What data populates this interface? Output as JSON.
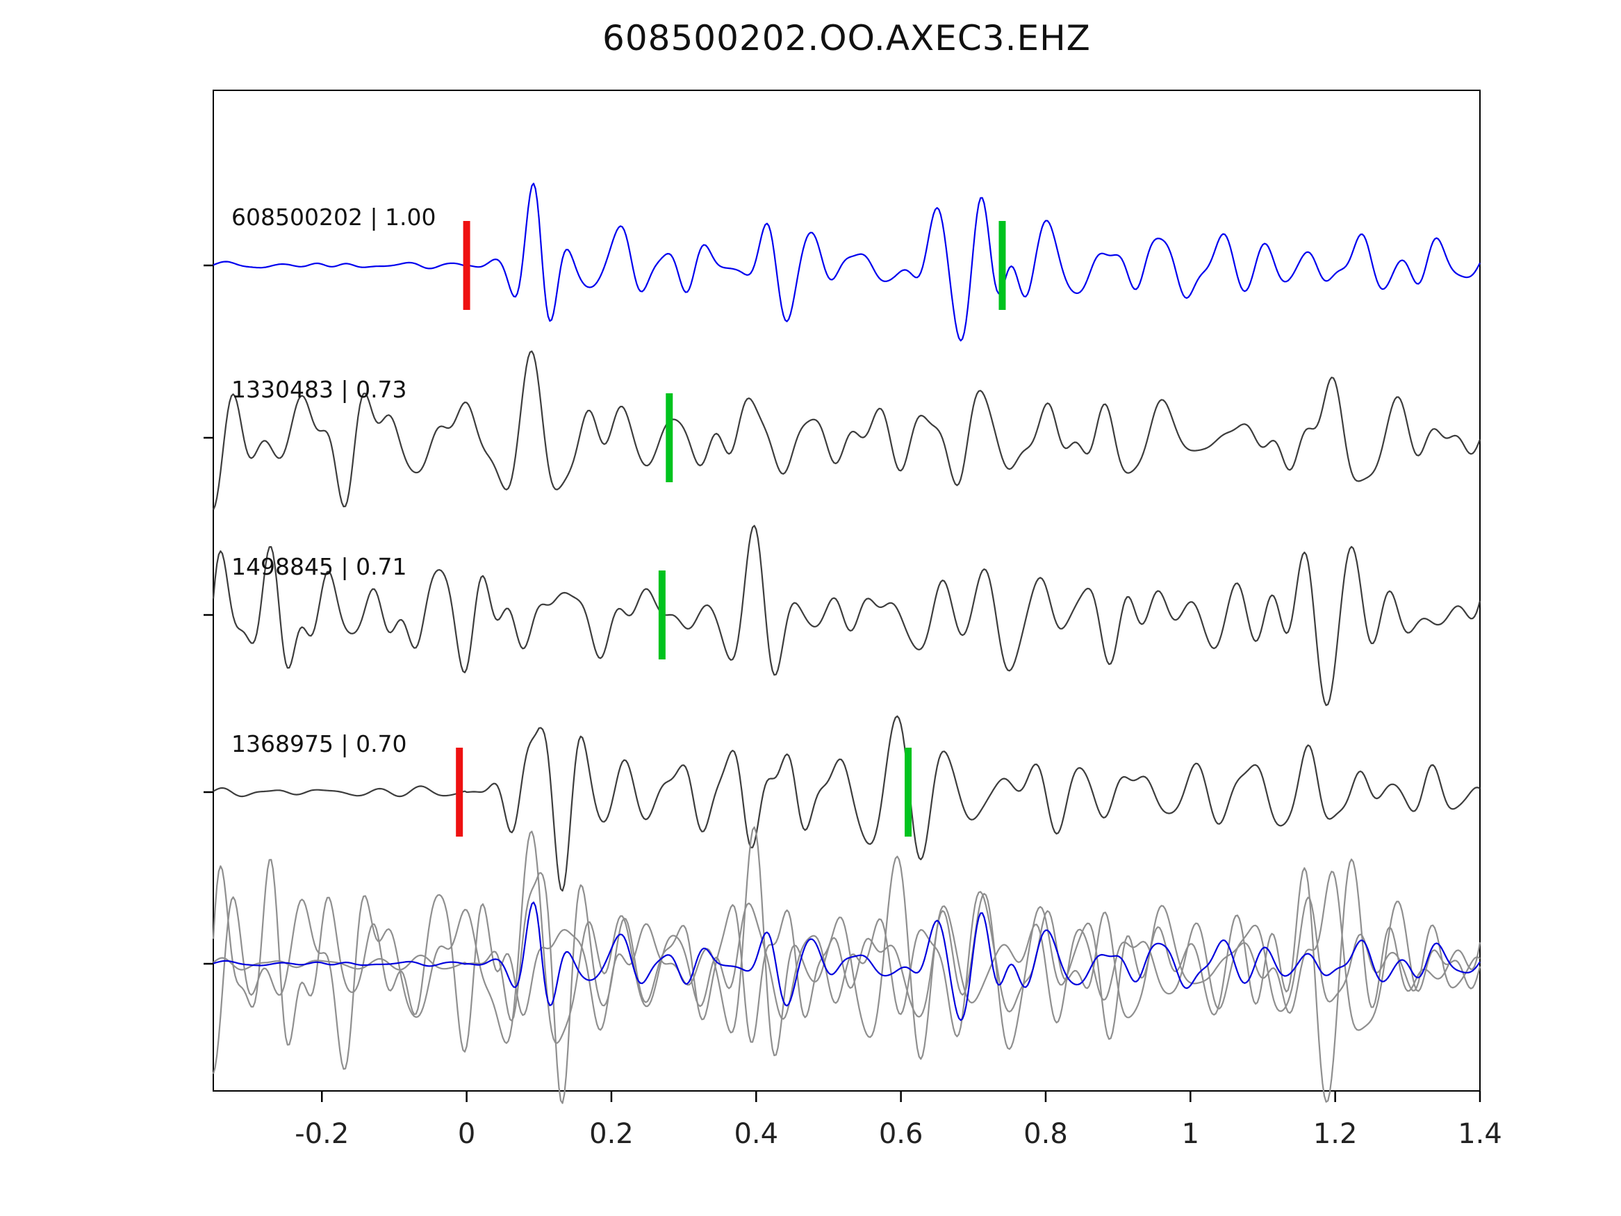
{
  "chart_data": {
    "type": "line",
    "title": "608500202.OO.AXEC3.EHZ",
    "subtitle": "",
    "xlabel": "",
    "ylabel": "",
    "xlim": [
      -0.35,
      1.4
    ],
    "xticks": [
      -0.2,
      0,
      0.2,
      0.4,
      0.6,
      0.8,
      1,
      1.2,
      1.4
    ],
    "xtick_labels": [
      "-0.2",
      "0",
      "0.2",
      "0.4",
      "0.6",
      "0.8",
      "1",
      "1.2",
      "1.4"
    ],
    "grid": false,
    "legend": "none",
    "colors": {
      "template_trace": "#0000ee",
      "match_trace": "#3d3d3d",
      "overlay_gray": "#8f8f8f",
      "overlay_blue": "#0000dd",
      "pick_red": "#ee1111",
      "pick_green": "#00c31e",
      "axis": "#000000",
      "label_text": "#111111"
    },
    "traces": [
      {
        "id": "608500202",
        "label": "608500202 | 1.00",
        "similarity": 1.0,
        "color_key": "template_trace",
        "envelope": "impulsive",
        "seed": 11,
        "amp": 1.0,
        "picks": [
          {
            "x": 0.0,
            "color_key": "pick_red"
          },
          {
            "x": 0.74,
            "color_key": "pick_green"
          }
        ]
      },
      {
        "id": "1330483",
        "label": "1330483 | 0.73",
        "similarity": 0.73,
        "color_key": "match_trace",
        "envelope": "sustained",
        "seed": 22,
        "amp": 0.85,
        "picks": [
          {
            "x": 0.28,
            "color_key": "pick_green"
          }
        ]
      },
      {
        "id": "1498845",
        "label": "1498845 | 0.71",
        "similarity": 0.71,
        "color_key": "match_trace",
        "envelope": "sustained",
        "seed": 33,
        "amp": 0.85,
        "picks": [
          {
            "x": 0.27,
            "color_key": "pick_green"
          }
        ]
      },
      {
        "id": "1368975",
        "label": "1368975 | 0.70",
        "similarity": 0.7,
        "color_key": "match_trace",
        "envelope": "impulsive",
        "seed": 44,
        "amp": 0.92,
        "picks": [
          {
            "x": -0.01,
            "color_key": "pick_red"
          },
          {
            "x": 0.61,
            "color_key": "pick_green"
          }
        ]
      }
    ],
    "overlay": {
      "description": "all matched traces overlaid aligned with the template",
      "gray_members": [
        1,
        2,
        3
      ],
      "blue_member": 0,
      "gray_amp": 1.3,
      "blue_amp": 0.75
    }
  }
}
